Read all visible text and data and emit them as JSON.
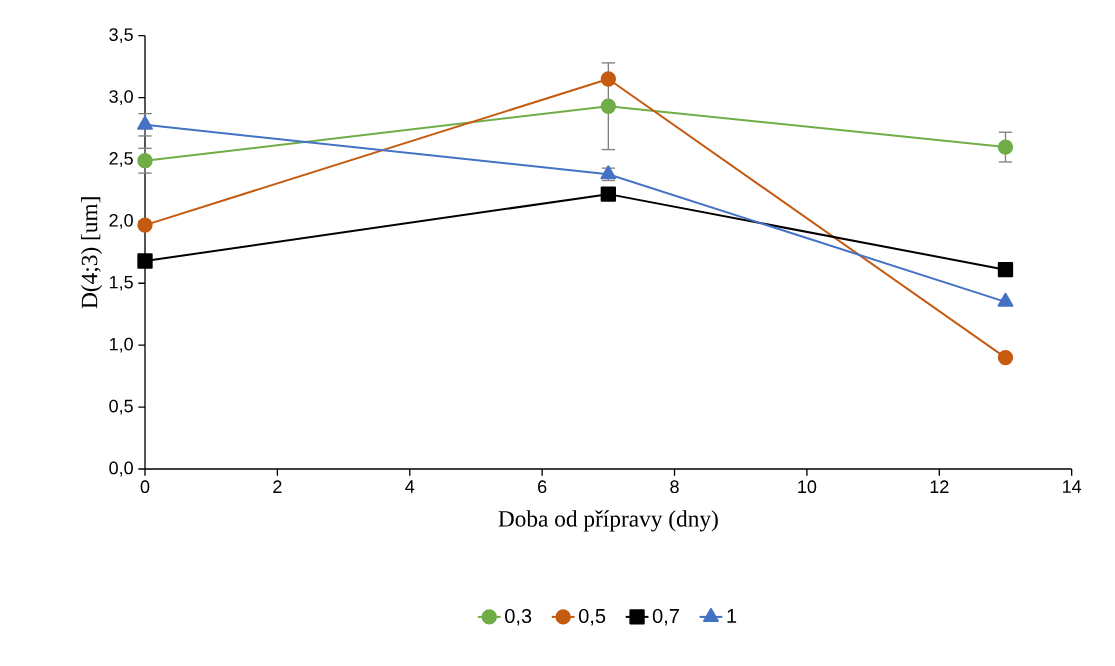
{
  "chart_data": {
    "type": "line",
    "xlabel": "Doba od přípravy (dny)",
    "ylabel": "D(4;3) [um]",
    "x": [
      0,
      7,
      13
    ],
    "series": [
      {
        "name": "0,3",
        "color": "#70ad47",
        "marker": "circle",
        "values": [
          2.49,
          2.93,
          2.6
        ],
        "errors": [
          0.1,
          0.35,
          0.12
        ]
      },
      {
        "name": "0,5",
        "color": "#c55a11",
        "marker": "circle",
        "values": [
          1.97,
          3.15,
          0.9
        ]
      },
      {
        "name": "0,7",
        "color": "#000000",
        "marker": "square",
        "values": [
          1.68,
          2.22,
          1.61
        ]
      },
      {
        "name": "1",
        "color": "#4472c4",
        "marker": "triangle",
        "values": [
          2.78,
          2.38,
          1.35
        ],
        "errors": [
          0.09,
          0.05,
          null
        ]
      }
    ],
    "xlim": [
      0,
      14
    ],
    "xticks": [
      0,
      2,
      4,
      6,
      8,
      10,
      12,
      14
    ],
    "ylim": [
      0,
      3.5
    ],
    "yticks": [
      {
        "value": 0,
        "label": "0,0"
      },
      {
        "value": 0.5,
        "label": "0,5"
      },
      {
        "value": 1,
        "label": "1,0"
      },
      {
        "value": 1.5,
        "label": "1,5"
      },
      {
        "value": 2,
        "label": "2,0"
      },
      {
        "value": 2.5,
        "label": "2,5"
      },
      {
        "value": 3,
        "label": "3,0"
      },
      {
        "value": 3.5,
        "label": "3,5"
      }
    ],
    "grid": false,
    "legend": "bottom",
    "line_style": "solid"
  }
}
